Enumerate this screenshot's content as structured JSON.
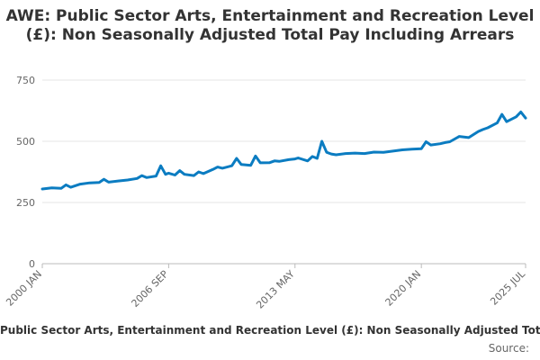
{
  "chart_data": {
    "type": "line",
    "title": "AWE: Public Sector Arts, Entertainment and Recreation Level (£): Non Seasonally Adjusted Total Pay Including Arrears",
    "ylim": [
      0,
      750
    ],
    "yticks": [
      "0",
      "250",
      "500",
      "750"
    ],
    "x_labels": [
      "2000 JAN",
      "2006 SEP",
      "2013 MAY",
      "2020 JAN",
      "2025 JUL"
    ],
    "grid": "horizontal",
    "line_color": "#0b7cc1",
    "series": [
      {
        "name": "Public Sector Arts, Entertainment and Recreation Level (£): Non Seasonally Adjusted Total Pay Including Arrears",
        "points": [
          [
            "2000-01",
            305
          ],
          [
            "2000-07",
            310
          ],
          [
            "2001-01",
            308
          ],
          [
            "2001-04",
            322
          ],
          [
            "2001-07",
            312
          ],
          [
            "2002-01",
            325
          ],
          [
            "2002-07",
            330
          ],
          [
            "2003-01",
            332
          ],
          [
            "2003-04",
            345
          ],
          [
            "2003-07",
            333
          ],
          [
            "2004-01",
            338
          ],
          [
            "2004-07",
            342
          ],
          [
            "2005-01",
            348
          ],
          [
            "2005-04",
            360
          ],
          [
            "2005-07",
            352
          ],
          [
            "2006-01",
            358
          ],
          [
            "2006-04",
            400
          ],
          [
            "2006-07",
            365
          ],
          [
            "2006-09",
            370
          ],
          [
            "2007-01",
            362
          ],
          [
            "2007-04",
            380
          ],
          [
            "2007-07",
            365
          ],
          [
            "2008-01",
            360
          ],
          [
            "2008-04",
            375
          ],
          [
            "2008-07",
            368
          ],
          [
            "2009-01",
            385
          ],
          [
            "2009-04",
            395
          ],
          [
            "2009-07",
            390
          ],
          [
            "2010-01",
            400
          ],
          [
            "2010-04",
            430
          ],
          [
            "2010-07",
            405
          ],
          [
            "2011-01",
            402
          ],
          [
            "2011-04",
            440
          ],
          [
            "2011-07",
            412
          ],
          [
            "2012-01",
            413
          ],
          [
            "2012-04",
            420
          ],
          [
            "2012-07",
            418
          ],
          [
            "2013-01",
            425
          ],
          [
            "2013-05",
            428
          ],
          [
            "2013-07",
            432
          ],
          [
            "2014-01",
            420
          ],
          [
            "2014-04",
            438
          ],
          [
            "2014-07",
            430
          ],
          [
            "2014-10",
            500
          ],
          [
            "2015-01",
            455
          ],
          [
            "2015-04",
            448
          ],
          [
            "2015-07",
            445
          ],
          [
            "2016-01",
            450
          ],
          [
            "2016-07",
            452
          ],
          [
            "2017-01",
            450
          ],
          [
            "2017-07",
            456
          ],
          [
            "2018-01",
            455
          ],
          [
            "2018-07",
            460
          ],
          [
            "2019-01",
            465
          ],
          [
            "2019-07",
            468
          ],
          [
            "2020-01",
            470
          ],
          [
            "2020-04",
            498
          ],
          [
            "2020-07",
            485
          ],
          [
            "2021-01",
            490
          ],
          [
            "2021-04",
            495
          ],
          [
            "2021-07",
            498
          ],
          [
            "2022-01",
            520
          ],
          [
            "2022-07",
            515
          ],
          [
            "2023-01",
            540
          ],
          [
            "2023-04",
            548
          ],
          [
            "2023-07",
            555
          ],
          [
            "2024-01",
            575
          ],
          [
            "2024-04",
            610
          ],
          [
            "2024-07",
            580
          ],
          [
            "2025-01",
            600
          ],
          [
            "2025-04",
            620
          ],
          [
            "2025-07",
            595
          ]
        ]
      }
    ],
    "source_label": "Source:"
  }
}
